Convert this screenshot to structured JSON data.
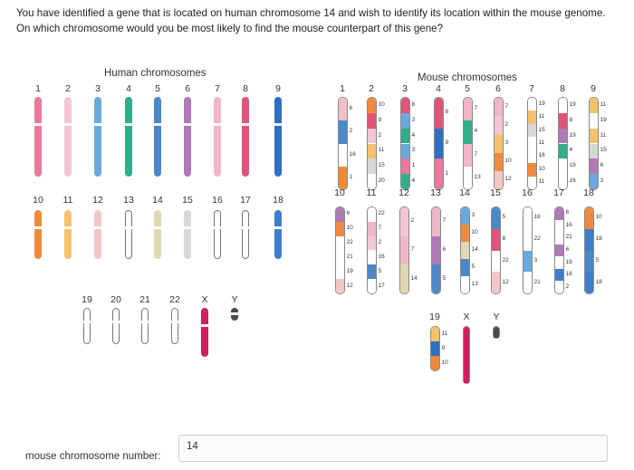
{
  "question": {
    "line1": "You have identified a gene that is located on human chromosome 14 and wish to identify its location within the mouse genome.",
    "line2": "On which chromosome would you be most likely to find the mouse counterpart of this gene?"
  },
  "figure": {
    "human_title": "Human chromosomes",
    "mouse_title": "Mouse chromosomes",
    "human_chromosomes": [
      {
        "label": "1",
        "color": "#e87a9a"
      },
      {
        "label": "2",
        "color": "#f3c6d4"
      },
      {
        "label": "3",
        "color": "#6aa9dd"
      },
      {
        "label": "4",
        "color": "#2fae8a"
      },
      {
        "label": "5",
        "color": "#4c88c8"
      },
      {
        "label": "6",
        "color": "#b07ab8"
      },
      {
        "label": "7",
        "color": "#f0b7c6"
      },
      {
        "label": "8",
        "color": "#e05577"
      },
      {
        "label": "9",
        "color": "#2f6fbf"
      },
      {
        "label": "10",
        "color": "#f08a3c"
      },
      {
        "label": "11",
        "color": "#f4c16c"
      },
      {
        "label": "12",
        "color": "#f4c7c7"
      },
      {
        "label": "13",
        "color": "#ffffff"
      },
      {
        "label": "14",
        "color": "#e0d8b0"
      },
      {
        "label": "15",
        "color": "#d7d7d7"
      },
      {
        "label": "16",
        "color": "#ffffff"
      },
      {
        "label": "17",
        "color": "#ffffff"
      },
      {
        "label": "18",
        "color": "#3e7ec8"
      },
      {
        "label": "19",
        "color": "#ffffff"
      },
      {
        "label": "20",
        "color": "#ffffff"
      },
      {
        "label": "21",
        "color": "#ffffff"
      },
      {
        "label": "22",
        "color": "#ffffff"
      },
      {
        "label": "X",
        "color": "#cf1f5e"
      },
      {
        "label": "Y",
        "color": "#4a4a4a"
      }
    ],
    "mouse_chromosomes": [
      {
        "label": "1",
        "segments": [
          {
            "c": "#f0c0c8",
            "t": "6"
          },
          {
            "c": "#4c88c8",
            "t": "2"
          },
          {
            "c": "#ffffff",
            "t": "16"
          },
          {
            "c": "#f08a3c",
            "t": "1"
          }
        ]
      },
      {
        "label": "2",
        "segments": [
          {
            "c": "#f08a3c",
            "t": "10"
          },
          {
            "c": "#e05577",
            "t": "9"
          },
          {
            "c": "#f3c6d4",
            "t": "2"
          },
          {
            "c": "#f4c16c",
            "t": "11"
          },
          {
            "c": "#d7d7d7",
            "t": "15"
          },
          {
            "c": "#ffffff",
            "t": "20"
          }
        ]
      },
      {
        "label": "3",
        "segments": [
          {
            "c": "#e05577",
            "t": "8"
          },
          {
            "c": "#6aa9dd",
            "t": "3"
          },
          {
            "c": "#2fae8a",
            "t": "4"
          },
          {
            "c": "#6aa9dd",
            "t": "3"
          },
          {
            "c": "#e87a9a",
            "t": "1"
          },
          {
            "c": "#2fae8a",
            "t": "4"
          }
        ]
      },
      {
        "label": "4",
        "segments": [
          {
            "c": "#e05577",
            "t": "8"
          },
          {
            "c": "#2f6fbf",
            "t": "9"
          },
          {
            "c": "#e87a9a",
            "t": "1"
          }
        ]
      },
      {
        "label": "5",
        "segments": [
          {
            "c": "#f0b7c6",
            "t": "7"
          },
          {
            "c": "#2fae8a",
            "t": "4"
          },
          {
            "c": "#f0b7c6",
            "t": "7"
          },
          {
            "c": "#ffffff",
            "t": "13"
          }
        ]
      },
      {
        "label": "6",
        "segments": [
          {
            "c": "#f0b7c6",
            "t": "7"
          },
          {
            "c": "#f3c6d4",
            "t": "2"
          },
          {
            "c": "#f4c16c",
            "t": "3"
          },
          {
            "c": "#f08a3c",
            "t": "10"
          },
          {
            "c": "#f4c7c7",
            "t": "12"
          }
        ]
      },
      {
        "label": "7",
        "segments": [
          {
            "c": "#ffffff",
            "t": "19"
          },
          {
            "c": "#f4c16c",
            "t": "11"
          },
          {
            "c": "#d7d7d7",
            "t": "15"
          },
          {
            "c": "#ffffff",
            "t": "11"
          },
          {
            "c": "#ffffff",
            "t": "16"
          },
          {
            "c": "#f08a3c",
            "t": "10"
          },
          {
            "c": "#ffffff",
            "t": "11"
          }
        ]
      },
      {
        "label": "8",
        "segments": [
          {
            "c": "#ffffff",
            "t": "19"
          },
          {
            "c": "#e05577",
            "t": "8"
          },
          {
            "c": "#b07ab8",
            "t": "19"
          },
          {
            "c": "#2fae8a",
            "t": "4"
          },
          {
            "c": "#ffffff",
            "t": "19"
          },
          {
            "c": "#ffffff",
            "t": "16"
          }
        ]
      },
      {
        "label": "9",
        "segments": [
          {
            "c": "#f4c16c",
            "t": "11"
          },
          {
            "c": "#ffffff",
            "t": "19"
          },
          {
            "c": "#f4c16c",
            "t": "11"
          },
          {
            "c": "#d7d7d7",
            "t": "15"
          },
          {
            "c": "#b07ab8",
            "t": "6"
          },
          {
            "c": "#6aa9dd",
            "t": "3"
          }
        ]
      },
      {
        "label": "10",
        "segments": [
          {
            "c": "#b07ab8",
            "t": "6"
          },
          {
            "c": "#f08a3c",
            "t": "10"
          },
          {
            "c": "#ffffff",
            "t": "22"
          },
          {
            "c": "#ffffff",
            "t": "21"
          },
          {
            "c": "#ffffff",
            "t": "19"
          },
          {
            "c": "#f4c7c7",
            "t": "12"
          }
        ]
      },
      {
        "label": "11",
        "segments": [
          {
            "c": "#ffffff",
            "t": "22"
          },
          {
            "c": "#f0b7c6",
            "t": "7"
          },
          {
            "c": "#f3c6d4",
            "t": "2"
          },
          {
            "c": "#ffffff",
            "t": "16"
          },
          {
            "c": "#4c88c8",
            "t": "5"
          },
          {
            "c": "#ffffff",
            "t": "17"
          }
        ]
      },
      {
        "label": "12",
        "segments": [
          {
            "c": "#f3c6d4",
            "t": "2"
          },
          {
            "c": "#f0b7c6",
            "t": "7"
          },
          {
            "c": "#e0d8b0",
            "t": "14"
          }
        ]
      },
      {
        "label": "13",
        "segments": [
          {
            "c": "#f0b7c6",
            "t": "7"
          },
          {
            "c": "#b07ab8",
            "t": "6"
          },
          {
            "c": "#4c88c8",
            "t": "5"
          }
        ]
      },
      {
        "label": "14",
        "segments": [
          {
            "c": "#6aa9dd",
            "t": "3"
          },
          {
            "c": "#f08a3c",
            "t": "10"
          },
          {
            "c": "#e0d8b0",
            "t": "14"
          },
          {
            "c": "#4c88c8",
            "t": "5"
          },
          {
            "c": "#ffffff",
            "t": "13"
          }
        ]
      },
      {
        "label": "15",
        "segments": [
          {
            "c": "#4c88c8",
            "t": "5"
          },
          {
            "c": "#e05577",
            "t": "8"
          },
          {
            "c": "#ffffff",
            "t": "22"
          },
          {
            "c": "#f4c7c7",
            "t": "12"
          }
        ]
      },
      {
        "label": "16",
        "segments": [
          {
            "c": "#ffffff",
            "t": "16"
          },
          {
            "c": "#ffffff",
            "t": "22"
          },
          {
            "c": "#6aa9dd",
            "t": "3"
          },
          {
            "c": "#ffffff",
            "t": "21"
          }
        ]
      },
      {
        "label": "17",
        "segments": [
          {
            "c": "#b07ab8",
            "t": "6"
          },
          {
            "c": "#ffffff",
            "t": "16"
          },
          {
            "c": "#ffffff",
            "t": "21"
          },
          {
            "c": "#b07ab8",
            "t": "6"
          },
          {
            "c": "#ffffff",
            "t": "19"
          },
          {
            "c": "#3e7ec8",
            "t": "18"
          },
          {
            "c": "#ffffff",
            "t": "2"
          }
        ]
      },
      {
        "label": "18",
        "segments": [
          {
            "c": "#f08a3c",
            "t": "10"
          },
          {
            "c": "#3e7ec8",
            "t": "18"
          },
          {
            "c": "#4c88c8",
            "t": "5"
          },
          {
            "c": "#3e7ec8",
            "t": "18"
          }
        ]
      },
      {
        "label": "19",
        "segments": [
          {
            "c": "#f4c16c",
            "t": "11"
          },
          {
            "c": "#2f6fbf",
            "t": "9"
          },
          {
            "c": "#f08a3c",
            "t": "10"
          }
        ]
      },
      {
        "label": "X",
        "segments": [
          {
            "c": "#cf1f5e",
            "t": "X"
          }
        ]
      },
      {
        "label": "Y",
        "segments": [
          {
            "c": "#4a4a4a",
            "t": "Y"
          }
        ]
      }
    ]
  },
  "answer": {
    "label": "mouse chromosome number:",
    "value": "14"
  }
}
